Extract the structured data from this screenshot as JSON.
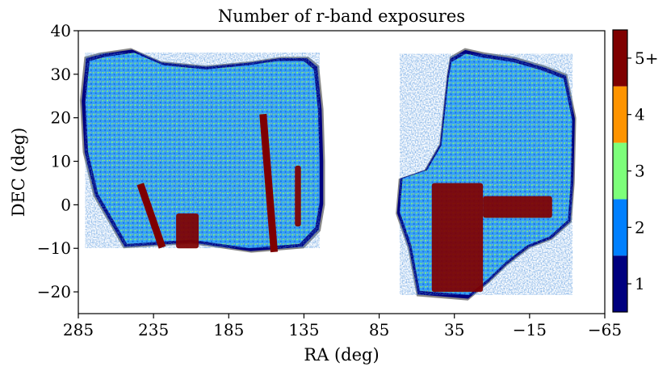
{
  "chart_data": {
    "type": "heatmap",
    "title": "Number of r-band exposures",
    "xlabel": "RA (deg)",
    "ylabel": "DEC (deg)",
    "xlim": [
      285,
      -65
    ],
    "ylim": [
      -25,
      40
    ],
    "x_ticks": [
      "285",
      "235",
      "185",
      "135",
      "85",
      "35",
      "−15",
      "−65"
    ],
    "x_tick_values": [
      285,
      235,
      185,
      135,
      85,
      35,
      -15,
      -65
    ],
    "y_ticks": [
      "40",
      "30",
      "20",
      "10",
      "0",
      "−10",
      "−20"
    ],
    "y_tick_values": [
      40,
      30,
      20,
      10,
      0,
      -10,
      -20
    ],
    "colorbar": {
      "labels": [
        "1",
        "2",
        "3",
        "4",
        "5+"
      ],
      "colors": [
        "#00007f",
        "#0080ff",
        "#7dff7a",
        "#ff9400",
        "#7f0000"
      ],
      "no_data_color": "#888888"
    },
    "regions": [
      {
        "name": "north-galactic-cap",
        "outline": [
          [
            281,
            34
          ],
          [
            270,
            35
          ],
          [
            250,
            36
          ],
          [
            230,
            33
          ],
          [
            200,
            32
          ],
          [
            170,
            33
          ],
          [
            150,
            34
          ],
          [
            132,
            34
          ],
          [
            125,
            32
          ],
          [
            122,
            22
          ],
          [
            121,
            10
          ],
          [
            121,
            0
          ],
          [
            124,
            -6
          ],
          [
            135,
            -10
          ],
          [
            170,
            -11
          ],
          [
            210,
            -9
          ],
          [
            255,
            -10
          ],
          [
            265,
            -4
          ],
          [
            275,
            2
          ],
          [
            282,
            12
          ],
          [
            284,
            24
          ]
        ]
      },
      {
        "name": "south-galactic-cap",
        "outline": [
          [
            26,
            -22
          ],
          [
            60,
            -21
          ],
          [
            66,
            -10
          ],
          [
            74,
            -2
          ],
          [
            72,
            6
          ],
          [
            55,
            8
          ],
          [
            45,
            14
          ],
          [
            40,
            30
          ],
          [
            38,
            34
          ],
          [
            28,
            36
          ],
          [
            15,
            35
          ],
          [
            -5,
            34
          ],
          [
            -25,
            32
          ],
          [
            -40,
            30
          ],
          [
            -46,
            20
          ],
          [
            -45,
            5
          ],
          [
            -43,
            -4
          ],
          [
            -30,
            -8
          ],
          [
            -15,
            -10
          ],
          [
            0,
            -14
          ],
          [
            12,
            -18
          ]
        ]
      }
    ],
    "features": [
      {
        "name": "deep-stripe-diagonal",
        "points": [
          [
            162,
            20
          ],
          [
            155,
            -10
          ]
        ]
      },
      {
        "name": "deep-stripe-diagonal",
        "points": [
          [
            243,
            4
          ],
          [
            230,
            -9
          ]
        ]
      },
      {
        "name": "deep-patch",
        "points": [
          [
            220,
            -2
          ],
          [
            205,
            -10
          ]
        ]
      },
      {
        "name": "deep-patch",
        "points": [
          [
            141,
            9
          ],
          [
            137,
            -5
          ]
        ]
      },
      {
        "name": "deep-region",
        "points": [
          [
            50,
            5
          ],
          [
            16,
            -20
          ]
        ]
      },
      {
        "name": "deep-stripe-horizontal",
        "points": [
          [
            16,
            2
          ],
          [
            -30,
            -3
          ]
        ]
      }
    ]
  }
}
